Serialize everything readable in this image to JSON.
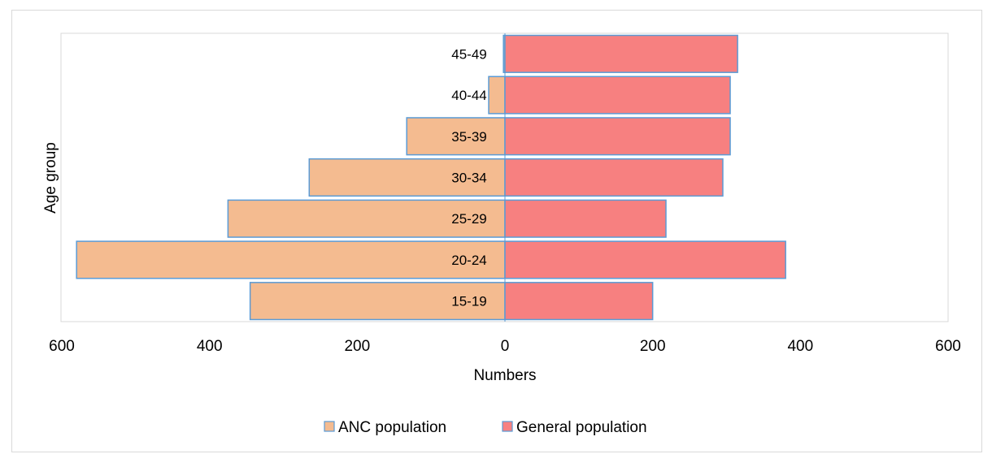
{
  "chart_data": {
    "type": "bar",
    "orientation": "horizontal",
    "layout": "population-pyramid",
    "categories": [
      "15-19",
      "20-24",
      "25-29",
      "30-34",
      "35-39",
      "40-44",
      "45-49"
    ],
    "series": [
      {
        "name": "ANC population",
        "side": "left",
        "values": [
          345,
          580,
          375,
          265,
          133,
          22,
          2
        ],
        "color": "#f4bb90"
      },
      {
        "name": "General population",
        "side": "right",
        "values": [
          200,
          380,
          218,
          295,
          305,
          305,
          315
        ],
        "color": "#f78080"
      }
    ],
    "bar_border_color": "#5b9bd5",
    "xlabel": "Numbers",
    "ylabel": "Age group",
    "xlim": [
      -600,
      600
    ],
    "xticks": [
      {
        "value": -600,
        "label": "600"
      },
      {
        "value": -400,
        "label": "400"
      },
      {
        "value": -200,
        "label": "200"
      },
      {
        "value": 0,
        "label": "0"
      },
      {
        "value": 200,
        "label": "200"
      },
      {
        "value": 400,
        "label": "400"
      },
      {
        "value": 600,
        "label": "600"
      }
    ],
    "grid": false,
    "legend_position": "bottom"
  }
}
